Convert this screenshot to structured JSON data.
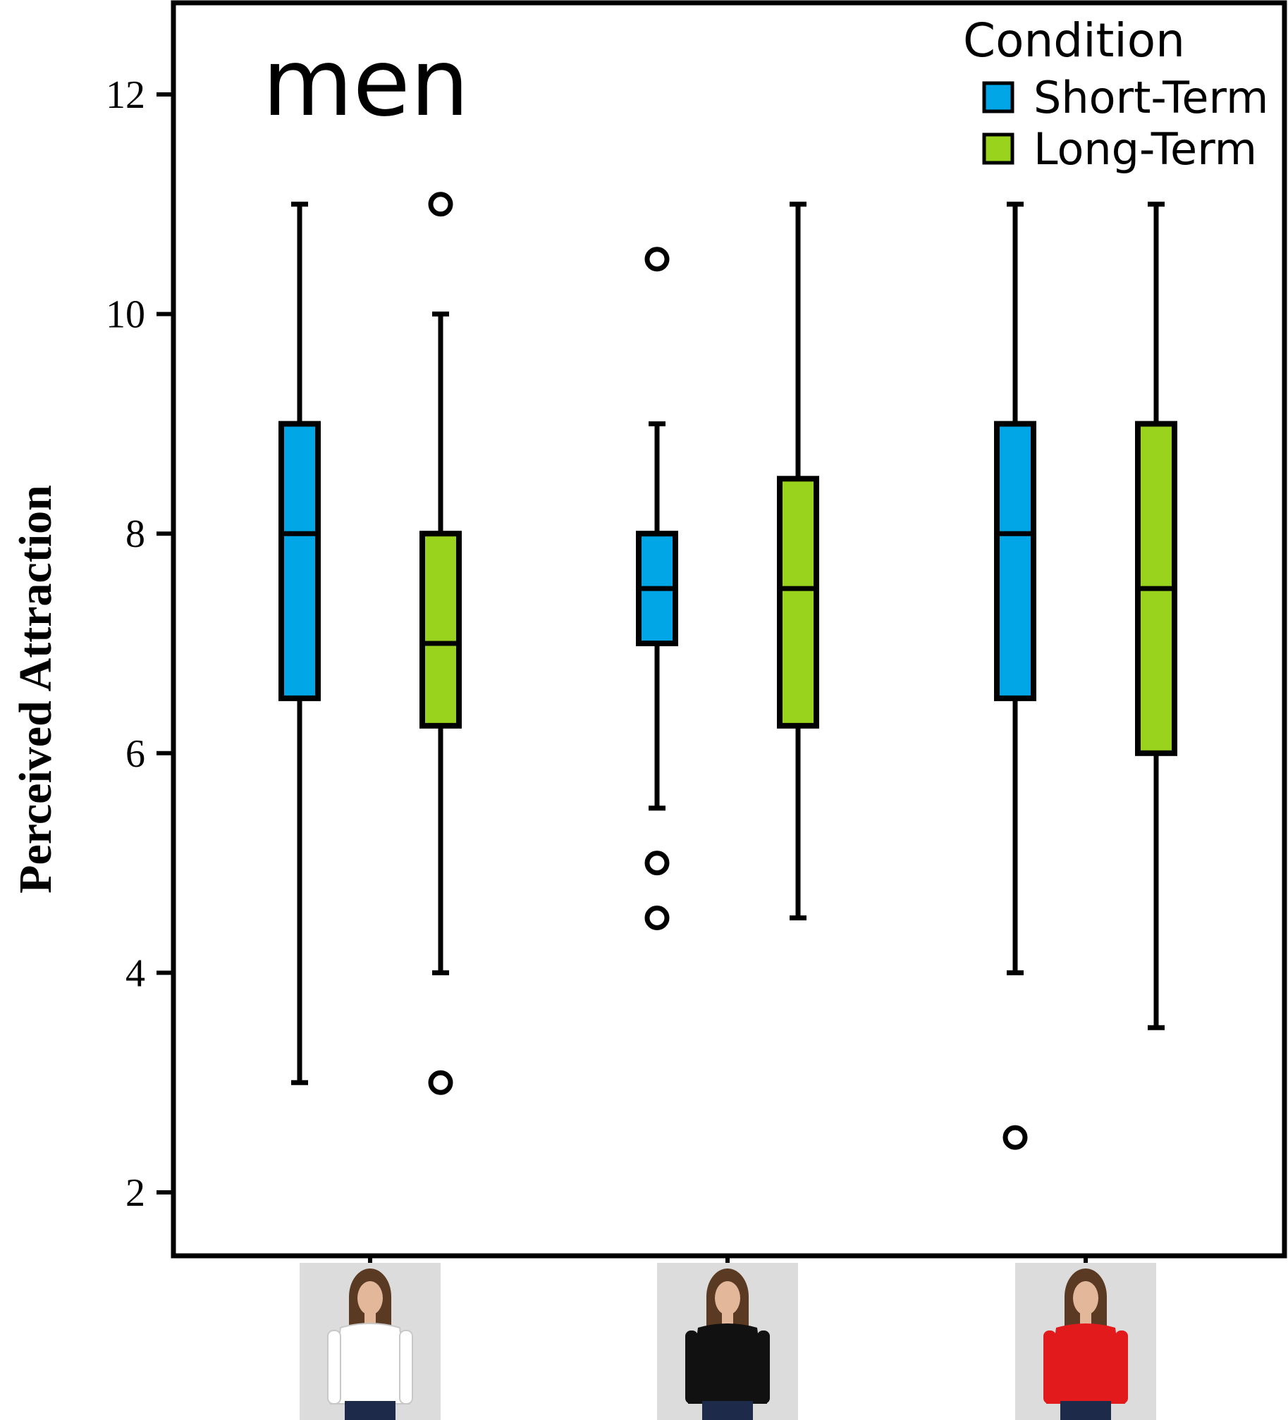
{
  "chart_data": {
    "type": "boxplot",
    "title": "men",
    "ylabel": "Perceived Attraction",
    "xlabel": "",
    "ylim": [
      1.5,
      12.8
    ],
    "yticks": [
      2,
      4,
      6,
      8,
      10,
      12
    ],
    "grid": false,
    "legend": {
      "title": "Condition",
      "placement": "top-right",
      "entries": [
        {
          "name": "Short-Term",
          "color": "#00a6e6"
        },
        {
          "name": "Long-Term",
          "color": "#9ad31e"
        }
      ]
    },
    "categories": [
      {
        "name": "white shirt",
        "image": "woman-white-shirt",
        "shirt_color": "#ffffff"
      },
      {
        "name": "black shirt",
        "image": "woman-black-shirt",
        "shirt_color": "#111111"
      },
      {
        "name": "red shirt",
        "image": "woman-red-shirt",
        "shirt_color": "#e31a1c"
      }
    ],
    "series": [
      {
        "name": "Short-Term",
        "color": "#00a6e6",
        "boxes": [
          {
            "whisker_low": 3,
            "q1": 6.5,
            "median": 8,
            "q3": 9,
            "whisker_high": 11,
            "outliers": []
          },
          {
            "whisker_low": 5.5,
            "q1": 7,
            "median": 7.5,
            "q3": 8,
            "whisker_high": 9,
            "outliers": [
              10.5,
              5,
              4.5
            ]
          },
          {
            "whisker_low": 4,
            "q1": 6.5,
            "median": 8,
            "q3": 9,
            "whisker_high": 11,
            "outliers": [
              2.5
            ]
          }
        ]
      },
      {
        "name": "Long-Term",
        "color": "#9ad31e",
        "boxes": [
          {
            "whisker_low": 4,
            "q1": 6.25,
            "median": 7,
            "q3": 8,
            "whisker_high": 10,
            "outliers": [
              11,
              3
            ]
          },
          {
            "whisker_low": 4.5,
            "q1": 6.25,
            "median": 7.5,
            "q3": 8.5,
            "whisker_high": 11,
            "outliers": []
          },
          {
            "whisker_low": 3.5,
            "q1": 6,
            "median": 7.5,
            "q3": 9,
            "whisker_high": 11,
            "outliers": []
          }
        ]
      }
    ]
  }
}
